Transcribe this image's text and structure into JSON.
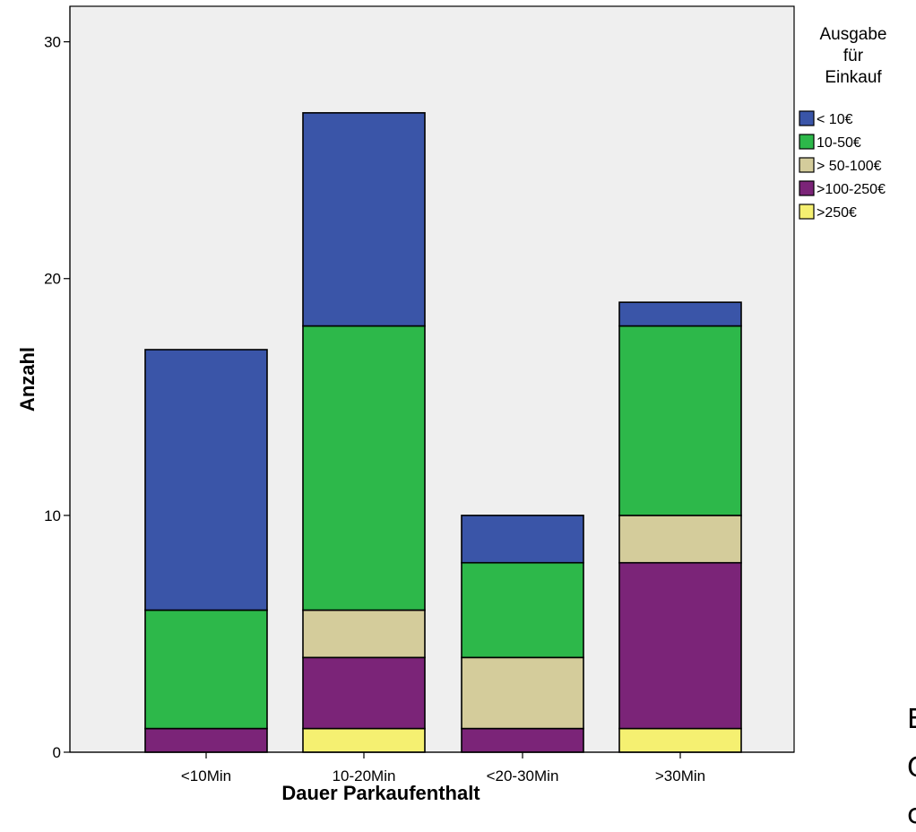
{
  "chart_data": {
    "type": "bar",
    "stacked": true,
    "categories": [
      "<10Min",
      "10-20Min",
      "<20-30Min",
      ">30Min"
    ],
    "series": [
      {
        "name": ">250€",
        "color": "#f5f071",
        "values": [
          0,
          1,
          0,
          1
        ]
      },
      {
        "name": ">100-250€",
        "color": "#7b2478",
        "values": [
          1,
          3,
          1,
          7
        ]
      },
      {
        "name": "> 50-100€",
        "color": "#d4cc9b",
        "values": [
          0,
          2,
          3,
          2
        ]
      },
      {
        "name": "10-50€",
        "color": "#2db84a",
        "values": [
          5,
          12,
          4,
          8
        ]
      },
      {
        "name": "< 10€",
        "color": "#3a55a8",
        "values": [
          11,
          9,
          2,
          1
        ]
      }
    ],
    "xlabel": "Dauer Parkaufenthalt",
    "ylabel": "Anzahl",
    "ylim": [
      0,
      31.5
    ],
    "yticks": [
      0,
      10,
      20,
      30
    ],
    "legend": {
      "title_lines": [
        "Ausgabe",
        "für",
        "Einkauf"
      ],
      "order": [
        "< 10€",
        "10-50€",
        "> 50-100€",
        ">100-250€",
        ">250€"
      ],
      "placement": "right"
    },
    "plot_background": "#efefef",
    "grid": false
  },
  "cut_off_glyphs": [
    "E",
    "C",
    "c"
  ]
}
